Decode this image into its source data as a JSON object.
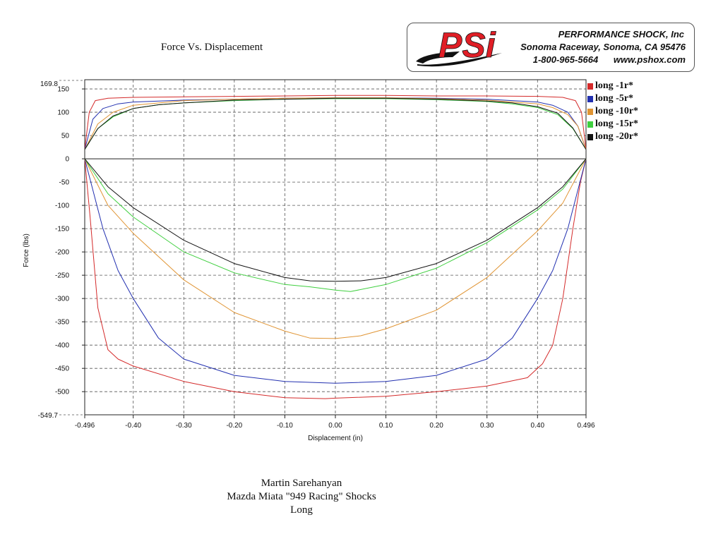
{
  "header": {
    "company_name": "PERFORMANCE SHOCK, Inc",
    "company_address": "Sonoma Raceway, Sonoma, CA 95476",
    "company_contact": "1-800-965-5664      www.pshox.com",
    "logo_text": "PSi",
    "logo_colors": {
      "brand": "#e01e26",
      "swoosh": "#111111"
    }
  },
  "footer": {
    "author": "Martin Sarehanyan",
    "subject": "Mazda Miata \"949 Racing\" Shocks",
    "mode": "Long"
  },
  "chart_data": {
    "type": "line",
    "title": "Force Vs. Displacement",
    "xlabel": "Displacement (in)",
    "ylabel": "Force (lbs)",
    "xlim": [
      -0.496,
      0.496
    ],
    "ylim": [
      -549.7,
      169.8
    ],
    "x_tick_labels": [
      "-0.496",
      "-0.40",
      "-0.30",
      "-0.20",
      "-0.10",
      "0.00",
      "0.10",
      "0.20",
      "0.30",
      "0.40",
      "0.496"
    ],
    "x_tick_values": [
      -0.496,
      -0.4,
      -0.3,
      -0.2,
      -0.1,
      0.0,
      0.1,
      0.2,
      0.3,
      0.4,
      0.496
    ],
    "y_tick_labels": [
      "150",
      "100",
      "50",
      "0",
      "-50",
      "-100",
      "-150",
      "-200",
      "-250",
      "-300",
      "-350",
      "-400",
      "-450",
      "-500"
    ],
    "y_tick_values": [
      150,
      100,
      50,
      0,
      -50,
      -100,
      -150,
      -200,
      -250,
      -300,
      -350,
      -400,
      -450,
      -500
    ],
    "y_limit_labels": [
      "169.8",
      "-549.7"
    ],
    "grid": true,
    "legend_position": "right",
    "series": [
      {
        "name": "long -1r*",
        "color": "#d42a2a",
        "upper": {
          "x": [
            -0.496,
            -0.487,
            -0.475,
            -0.45,
            -0.4,
            -0.3,
            -0.2,
            -0.1,
            0.0,
            0.1,
            0.2,
            0.3,
            0.4,
            0.45,
            0.475,
            0.487,
            0.496
          ],
          "y": [
            20,
            100,
            125,
            130,
            132,
            133,
            134,
            135,
            136,
            136,
            135,
            135,
            134,
            132,
            125,
            100,
            20
          ]
        },
        "lower": {
          "x": [
            -0.496,
            -0.485,
            -0.47,
            -0.45,
            -0.43,
            -0.4,
            -0.3,
            -0.2,
            -0.1,
            -0.02,
            0.0,
            0.1,
            0.2,
            0.3,
            0.38,
            0.41,
            0.43,
            0.45,
            0.47,
            0.485,
            0.496
          ],
          "y": [
            0,
            -130,
            -320,
            -410,
            -430,
            -445,
            -478,
            -500,
            -513,
            -515,
            -514,
            -510,
            -500,
            -488,
            -470,
            -440,
            -400,
            -300,
            -150,
            -50,
            0
          ]
        }
      },
      {
        "name": "long -5r*",
        "color": "#2230b0",
        "upper": {
          "x": [
            -0.496,
            -0.48,
            -0.46,
            -0.43,
            -0.4,
            -0.3,
            -0.2,
            -0.1,
            0.0,
            0.1,
            0.2,
            0.3,
            0.4,
            0.43,
            0.46,
            0.48,
            0.496
          ],
          "y": [
            20,
            85,
            108,
            118,
            122,
            126,
            128,
            130,
            131,
            131,
            130,
            128,
            122,
            115,
            100,
            70,
            20
          ]
        },
        "lower": {
          "x": [
            -0.496,
            -0.46,
            -0.43,
            -0.4,
            -0.35,
            -0.3,
            -0.2,
            -0.1,
            0.0,
            0.1,
            0.2,
            0.3,
            0.35,
            0.4,
            0.43,
            0.46,
            0.496
          ],
          "y": [
            0,
            -150,
            -240,
            -300,
            -385,
            -430,
            -465,
            -478,
            -482,
            -478,
            -465,
            -430,
            -385,
            -300,
            -240,
            -150,
            0
          ]
        }
      },
      {
        "name": "long -10r*",
        "color": "#e09433",
        "upper": {
          "x": [
            -0.496,
            -0.47,
            -0.44,
            -0.4,
            -0.3,
            -0.2,
            -0.1,
            0.0,
            0.1,
            0.2,
            0.3,
            0.4,
            0.43,
            0.46,
            0.48,
            0.496
          ],
          "y": [
            20,
            75,
            100,
            115,
            125,
            128,
            130,
            131,
            131,
            129,
            126,
            118,
            110,
            95,
            70,
            20
          ]
        },
        "lower": {
          "x": [
            -0.496,
            -0.45,
            -0.4,
            -0.3,
            -0.2,
            -0.1,
            -0.05,
            0.0,
            0.05,
            0.1,
            0.2,
            0.3,
            0.4,
            0.45,
            0.496
          ],
          "y": [
            0,
            -100,
            -160,
            -260,
            -330,
            -370,
            -385,
            -386,
            -380,
            -365,
            -325,
            -255,
            -155,
            -95,
            0
          ]
        }
      },
      {
        "name": "long -15r*",
        "color": "#3fcf3f",
        "upper": {
          "x": [
            -0.496,
            -0.47,
            -0.44,
            -0.4,
            -0.35,
            -0.3,
            -0.2,
            -0.1,
            0.0,
            0.1,
            0.2,
            0.3,
            0.35,
            0.4,
            0.44,
            0.47,
            0.496
          ],
          "y": [
            20,
            65,
            90,
            108,
            116,
            120,
            125,
            128,
            129,
            129,
            127,
            123,
            118,
            110,
            95,
            65,
            20
          ]
        },
        "lower": {
          "x": [
            -0.496,
            -0.45,
            -0.4,
            -0.3,
            -0.2,
            -0.1,
            -0.05,
            0.0,
            0.03,
            0.1,
            0.2,
            0.3,
            0.4,
            0.45,
            0.496
          ],
          "y": [
            0,
            -75,
            -125,
            -200,
            -245,
            -270,
            -275,
            -282,
            -285,
            -270,
            -235,
            -180,
            -110,
            -65,
            0
          ]
        }
      },
      {
        "name": "long -20r*",
        "color": "#111111",
        "upper": {
          "x": [
            -0.496,
            -0.47,
            -0.44,
            -0.4,
            -0.35,
            -0.3,
            -0.2,
            -0.1,
            0.0,
            0.1,
            0.2,
            0.3,
            0.35,
            0.4,
            0.44,
            0.47,
            0.496
          ],
          "y": [
            20,
            65,
            92,
            108,
            116,
            120,
            126,
            128,
            130,
            130,
            128,
            124,
            120,
            112,
            98,
            66,
            20
          ]
        },
        "lower": {
          "x": [
            -0.496,
            -0.45,
            -0.4,
            -0.3,
            -0.2,
            -0.1,
            -0.05,
            0.0,
            0.05,
            0.1,
            0.2,
            0.3,
            0.4,
            0.45,
            0.496
          ],
          "y": [
            0,
            -60,
            -105,
            -175,
            -225,
            -255,
            -262,
            -263,
            -262,
            -255,
            -225,
            -175,
            -105,
            -60,
            0
          ]
        }
      }
    ]
  }
}
